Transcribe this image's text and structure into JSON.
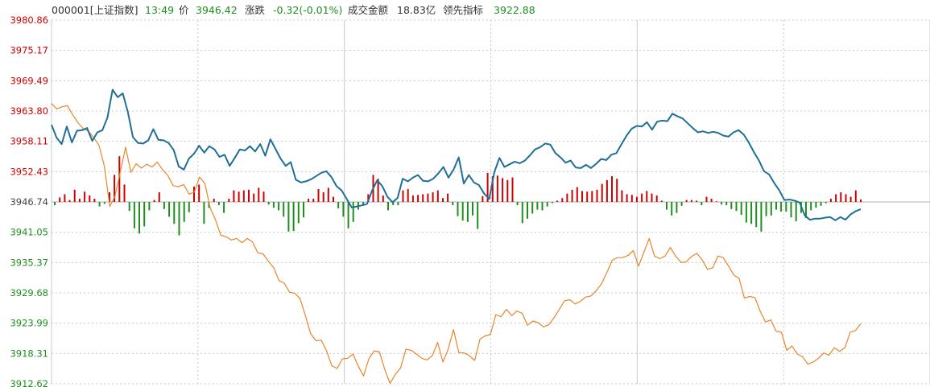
{
  "header": {
    "code_name": "000001[上证指数]",
    "time": "13:49",
    "price_label": "价",
    "price_value": "3946.42",
    "change_label": "涨跌",
    "change_value": "-0.32(-0.01%)",
    "turnover_label": "成交金额",
    "turnover_value": "18.83亿",
    "leading_label": "领先指标",
    "leading_value": "3922.88"
  },
  "colors": {
    "up": "#d00000",
    "down": "#1e8f1e",
    "neutral": "#444444",
    "price_line": "#1f6f96",
    "leading_line": "#e8862a",
    "grid": "#c8c8c8"
  },
  "chart_data": {
    "type": "line",
    "y_axis": {
      "min": 3912.62,
      "max": 3980.86,
      "baseline": 3946.74,
      "tick_labels": [
        "3980.86",
        "3975.17",
        "3969.49",
        "3963.80",
        "3958.11",
        "3952.43",
        "3946.74",
        "3941.05",
        "3935.37",
        "3929.68",
        "3923.99",
        "3918.31",
        "3912.62"
      ]
    },
    "grid": true,
    "series": [
      {
        "role": "price",
        "values": [
          3961.2,
          3958.8,
          3957.6,
          3960.9,
          3957.9,
          3960.1,
          3960.2,
          3960.6,
          3958.2,
          3959.8,
          3960.2,
          3962.6,
          3967.8,
          3966.4,
          3967.1,
          3963.6,
          3958.9,
          3957.8,
          3957.7,
          3958.3,
          3960.4,
          3958.4,
          3958.3,
          3957.8,
          3956.5,
          3953.4,
          3952.8,
          3954.9,
          3955.8,
          3957.3,
          3956.0,
          3957.2,
          3956.6,
          3955.2,
          3955.6,
          3953.5,
          3955.0,
          3956.6,
          3956.4,
          3957.2,
          3956.2,
          3957.6,
          3955.4,
          3958.5,
          3956.7,
          3954.9,
          3953.5,
          3954.2,
          3950.9,
          3950.4,
          3950.6,
          3951.0,
          3951.6,
          3952.2,
          3952.5,
          3951.4,
          3949.7,
          3948.9,
          3947.3,
          3945.7,
          3945.9,
          3946.1,
          3946.4,
          3948.9,
          3950.8,
          3949.7,
          3947.7,
          3946.7,
          3947.5,
          3951.1,
          3950.6,
          3951.3,
          3951.8,
          3950.7,
          3950.6,
          3951.1,
          3952.1,
          3953.3,
          3951.3,
          3952.8,
          3955.1,
          3950.2,
          3951.8,
          3950.4,
          3949.9,
          3948.3,
          3947.3,
          3952.3,
          3955.0,
          3953.3,
          3953.8,
          3954.3,
          3954.0,
          3954.5,
          3955.5,
          3956.6,
          3957.0,
          3957.7,
          3957.5,
          3955.9,
          3955.1,
          3954.1,
          3954.5,
          3953.2,
          3953.1,
          3953.7,
          3953.1,
          3953.9,
          3954.8,
          3954.6,
          3955.6,
          3955.9,
          3957.6,
          3959.2,
          3960.5,
          3961.0,
          3960.9,
          3961.7,
          3960.3,
          3961.8,
          3962.0,
          3961.9,
          3963.3,
          3962.8,
          3962.4,
          3961.5,
          3960.6,
          3959.8,
          3960.0,
          3959.7,
          3959.9,
          3959.7,
          3959.2,
          3959.0,
          3959.8,
          3960.2,
          3959.4,
          3957.9,
          3956.1,
          3954.5,
          3952.5,
          3951.9,
          3950.3,
          3948.9,
          3947.1,
          3947.2,
          3947.0,
          3946.6,
          3944.2,
          3943.4,
          3943.6,
          3943.6,
          3943.8,
          3943.9,
          3943.3,
          3943.9,
          3943.4,
          3944.4,
          3945.0,
          3945.4
        ]
      },
      {
        "role": "leading",
        "values": [
          3965.2,
          3964.2,
          3964.6,
          3964.8,
          3963.1,
          3961.6,
          3960.5,
          3960.0,
          3958.8,
          3957.3,
          3953.4,
          3945.9,
          3947.8,
          3952.4,
          3957.0,
          3952.3,
          3953.9,
          3953.1,
          3953.8,
          3953.3,
          3954.2,
          3952.8,
          3951.7,
          3949.8,
          3949.6,
          3950.0,
          3948.2,
          3948.6,
          3951.4,
          3950.2,
          3945.6,
          3943.4,
          3940.5,
          3940.2,
          3939.6,
          3939.9,
          3939.1,
          3939.9,
          3939.2,
          3937.2,
          3937.0,
          3935.6,
          3934.4,
          3932.0,
          3931.5,
          3929.8,
          3929.6,
          3928.6,
          3925.4,
          3922.0,
          3920.7,
          3920.8,
          3918.8,
          3916.0,
          3915.5,
          3917.3,
          3917.4,
          3918.2,
          3915.9,
          3914.1,
          3917.3,
          3918.8,
          3918.6,
          3915.3,
          3912.7,
          3914.4,
          3915.6,
          3919.1,
          3918.9,
          3918.2,
          3917.4,
          3917.1,
          3917.9,
          3920.4,
          3916.7,
          3919.1,
          3922.8,
          3918.5,
          3918.4,
          3917.9,
          3917.0,
          3921.0,
          3921.6,
          3921.9,
          3925.6,
          3925.2,
          3926.6,
          3925.4,
          3926.3,
          3925.8,
          3923.6,
          3924.4,
          3924.1,
          3923.3,
          3923.7,
          3925.0,
          3926.6,
          3928.2,
          3928.4,
          3927.6,
          3928.1,
          3928.9,
          3929.1,
          3930.1,
          3931.4,
          3933.5,
          3935.8,
          3936.3,
          3936.3,
          3936.7,
          3937.6,
          3934.7,
          3937.3,
          3939.9,
          3936.6,
          3936.1,
          3936.6,
          3938.2,
          3936.6,
          3935.4,
          3935.5,
          3936.5,
          3937.1,
          3935.9,
          3934.1,
          3934.4,
          3936.6,
          3936.3,
          3934.7,
          3933.0,
          3932.4,
          3928.7,
          3929.0,
          3928.8,
          3926.2,
          3924.2,
          3924.6,
          3922.5,
          3922.3,
          3918.9,
          3919.7,
          3918.2,
          3917.7,
          3916.3,
          3916.7,
          3917.4,
          3918.4,
          3918.0,
          3919.4,
          3918.7,
          3919.4,
          3922.3,
          3922.6,
          3923.9
        ]
      }
    ],
    "volume_bars": [
      -0.5,
      0.7,
      1.2,
      0.3,
      1.9,
      0.5,
      1.6,
      1.0,
      0.5,
      -0.7,
      -0.3,
      1.5,
      4.2,
      7.1,
      2.7,
      -1.4,
      -4.1,
      -4.9,
      -3.8,
      -1.3,
      0.3,
      1.5,
      -1.1,
      -2.3,
      -3.4,
      -5.2,
      -3.1,
      -1.6,
      2.4,
      2.7,
      -3.4,
      -0.9,
      0.5,
      -0.5,
      -1.7,
      0.5,
      1.8,
      1.6,
      1.8,
      1.9,
      1.3,
      2.2,
      1.6,
      -0.4,
      -0.9,
      -1.3,
      -2.3,
      -4.6,
      -4.5,
      -3.3,
      -2.4,
      0.5,
      0.5,
      2.0,
      1.5,
      2.2,
      0.8,
      -1.0,
      -2.3,
      -4.1,
      -3.1,
      -1.2,
      -0.6,
      1.2,
      4.2,
      3.6,
      1.0,
      -1.3,
      -0.5,
      -0.5,
      1.8,
      2.0,
      1.0,
      1.1,
      1.2,
      1.3,
      1.5,
      1.8,
      0.6,
      1.3,
      -0.5,
      -2.2,
      -2.9,
      -3.1,
      -2.1,
      -4.2,
      0.9,
      4.5,
      4.0,
      4.1,
      3.7,
      3.4,
      3.8,
      -0.5,
      -3.3,
      -2.6,
      -1.8,
      -1.2,
      -1.3,
      -0.7,
      -0.2,
      0.2,
      0.6,
      1.3,
      1.9,
      2.3,
      1.7,
      1.6,
      1.7,
      1.9,
      2.8,
      3.4,
      4.0,
      3.6,
      1.8,
      1.2,
      1.1,
      0.8,
      1.3,
      1.7,
      1.3,
      1.0,
      0.2,
      -1.2,
      -2.1,
      -1.7,
      -0.6,
      0.3,
      0.3,
      0.2,
      -0.5,
      0.8,
      0.5,
      0.1,
      -0.4,
      -0.5,
      -1.1,
      -1.4,
      -2.0,
      -3.2,
      -3.4,
      -3.9,
      -4.6,
      -2.2,
      -2.1,
      -1.2,
      -1.5,
      -1.5,
      -2.4,
      -3.0,
      -1.7,
      -2.5,
      -1.3,
      -0.9,
      -0.6,
      -0.2,
      0.5,
      1.2,
      1.5,
      1.2,
      0.8,
      1.8,
      0.4
    ]
  }
}
